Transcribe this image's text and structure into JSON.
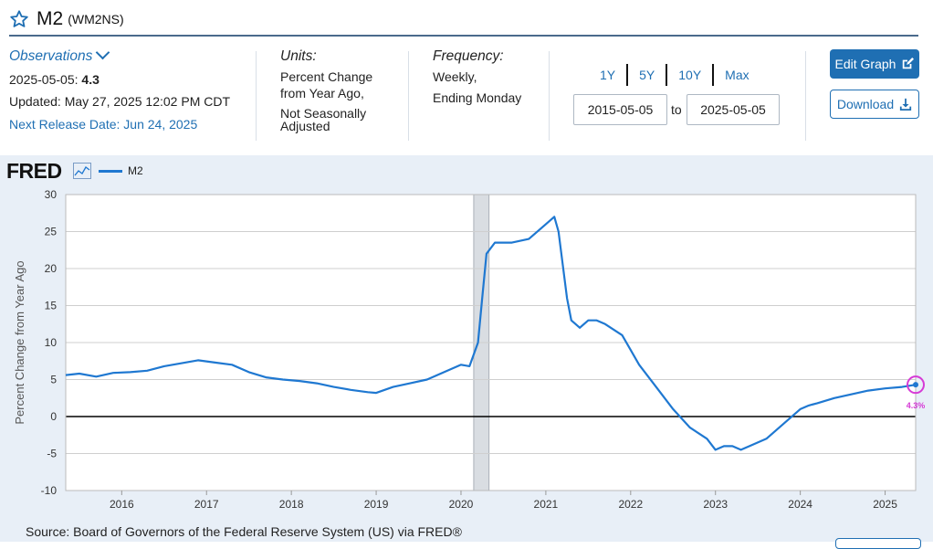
{
  "title": {
    "main": "M2",
    "code": "(WM2NS)"
  },
  "observations": {
    "label": "Observations",
    "date": "2025-05-05:",
    "value": "4.3",
    "updated": "Updated: May 27, 2025 12:02 PM CDT",
    "next_release": "Next Release Date: Jun 24, 2025"
  },
  "units": {
    "label": "Units:",
    "line1": "Percent Change",
    "line2": "from Year Ago,",
    "line3": "Not Seasonally",
    "line4": "Adjusted"
  },
  "frequency": {
    "label": "Frequency:",
    "line1": "Weekly,",
    "line2": "Ending Monday"
  },
  "ranges": [
    "1Y",
    "5Y",
    "10Y",
    "Max"
  ],
  "date_range": {
    "start": "2015-05-05",
    "to": "to",
    "end": "2025-05-05"
  },
  "buttons": {
    "edit": "Edit Graph",
    "download": "Download"
  },
  "graph": {
    "logo": "FRED",
    "legend": "M2",
    "source": "Source: Board of Governors of the Federal Reserve System (US) via FRED®"
  },
  "colors": {
    "series": "#1f78d1",
    "accent": "#1f6fb3",
    "highlight": "#d63ad6",
    "recession": "#d9dde2"
  },
  "chart_data": {
    "type": "line",
    "title": "",
    "xlabel": "",
    "ylabel": "Percent Change from Year Ago",
    "ylim": [
      -10,
      30
    ],
    "yticks": [
      30,
      25,
      20,
      15,
      10,
      5,
      0,
      -5,
      -10
    ],
    "xlim": [
      2015.34,
      2025.36
    ],
    "xticks": [
      {
        "x": 2016,
        "label": "2016"
      },
      {
        "x": 2017,
        "label": "2017"
      },
      {
        "x": 2018,
        "label": "2018"
      },
      {
        "x": 2019,
        "label": "2019"
      },
      {
        "x": 2020,
        "label": "2020"
      },
      {
        "x": 2021,
        "label": "2021"
      },
      {
        "x": 2022,
        "label": "2022"
      },
      {
        "x": 2023,
        "label": "2023"
      },
      {
        "x": 2024,
        "label": "2024"
      },
      {
        "x": 2025,
        "label": "2025"
      }
    ],
    "recession": [
      2020.15,
      2020.33
    ],
    "series": [
      {
        "name": "M2",
        "x": [
          2015.34,
          2015.5,
          2015.7,
          2015.9,
          2016.1,
          2016.3,
          2016.5,
          2016.7,
          2016.9,
          2017.1,
          2017.3,
          2017.5,
          2017.7,
          2017.9,
          2018.1,
          2018.3,
          2018.5,
          2018.7,
          2018.9,
          2019.0,
          2019.2,
          2019.4,
          2019.6,
          2019.8,
          2020.0,
          2020.1,
          2020.2,
          2020.25,
          2020.3,
          2020.4,
          2020.6,
          2020.8,
          2021.0,
          2021.1,
          2021.15,
          2021.25,
          2021.3,
          2021.4,
          2021.5,
          2021.6,
          2021.7,
          2021.9,
          2022.1,
          2022.2,
          2022.3,
          2022.5,
          2022.7,
          2022.9,
          2023.0,
          2023.1,
          2023.2,
          2023.3,
          2023.4,
          2023.6,
          2023.8,
          2024.0,
          2024.1,
          2024.2,
          2024.4,
          2024.6,
          2024.8,
          2025.0,
          2025.2,
          2025.36
        ],
        "values": [
          5.6,
          5.8,
          5.4,
          5.9,
          6.0,
          6.2,
          6.8,
          7.2,
          7.6,
          7.3,
          7.0,
          6.0,
          5.3,
          5.0,
          4.8,
          4.5,
          4.0,
          3.6,
          3.3,
          3.2,
          4.0,
          4.5,
          5.0,
          6.0,
          7.0,
          6.8,
          10.0,
          16.0,
          22.0,
          23.5,
          23.5,
          24.0,
          26.0,
          27.0,
          25.0,
          16.0,
          13.0,
          12.0,
          13.0,
          13.0,
          12.5,
          11.0,
          7.0,
          5.5,
          4.0,
          1.0,
          -1.5,
          -3.0,
          -4.5,
          -4.0,
          -4.0,
          -4.5,
          -4.0,
          -3.0,
          -1.0,
          1.0,
          1.5,
          1.8,
          2.5,
          3.0,
          3.5,
          3.8,
          4.0,
          4.3
        ]
      }
    ]
  }
}
